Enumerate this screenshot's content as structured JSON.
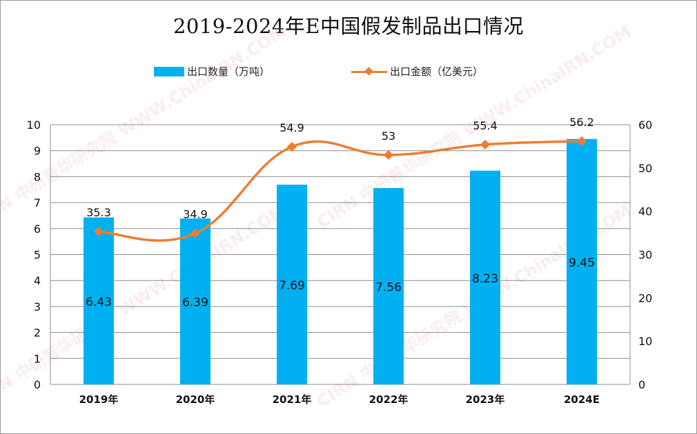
{
  "title": "2019-2024年E中国假发制品出口情况",
  "legend": {
    "bar_label": "出口数量（万吨）",
    "line_label": "出口金额（亿美元）"
  },
  "watermark": "CIRN 中研普华研究院 WWW.ChinaIRN.COM",
  "colors": {
    "bar": "#00b0f0",
    "line": "#ed7d31",
    "grid": "#8c8c8c",
    "text": "#222222"
  },
  "chart_data": {
    "type": "bar",
    "title": "2019-2024年E中国假发制品出口情况",
    "categories": [
      "2019年",
      "2020年",
      "2021年",
      "2022年",
      "2023年",
      "2024E"
    ],
    "series": [
      {
        "name": "出口数量（万吨）",
        "type": "bar",
        "axis": "left",
        "values": [
          6.43,
          6.39,
          7.69,
          7.56,
          8.23,
          9.45
        ]
      },
      {
        "name": "出口金额（亿美元）",
        "type": "line",
        "axis": "right",
        "values": [
          35.3,
          34.9,
          54.9,
          53,
          55.4,
          56.2
        ]
      }
    ],
    "y_left": {
      "lim": [
        0,
        10
      ],
      "ticks": [
        0,
        1,
        2,
        3,
        4,
        5,
        6,
        7,
        8,
        9,
        10
      ]
    },
    "y_right": {
      "lim": [
        0,
        60
      ],
      "ticks": [
        0,
        10,
        20,
        30,
        40,
        50,
        60
      ]
    },
    "grid": true,
    "legend_position": "top"
  }
}
